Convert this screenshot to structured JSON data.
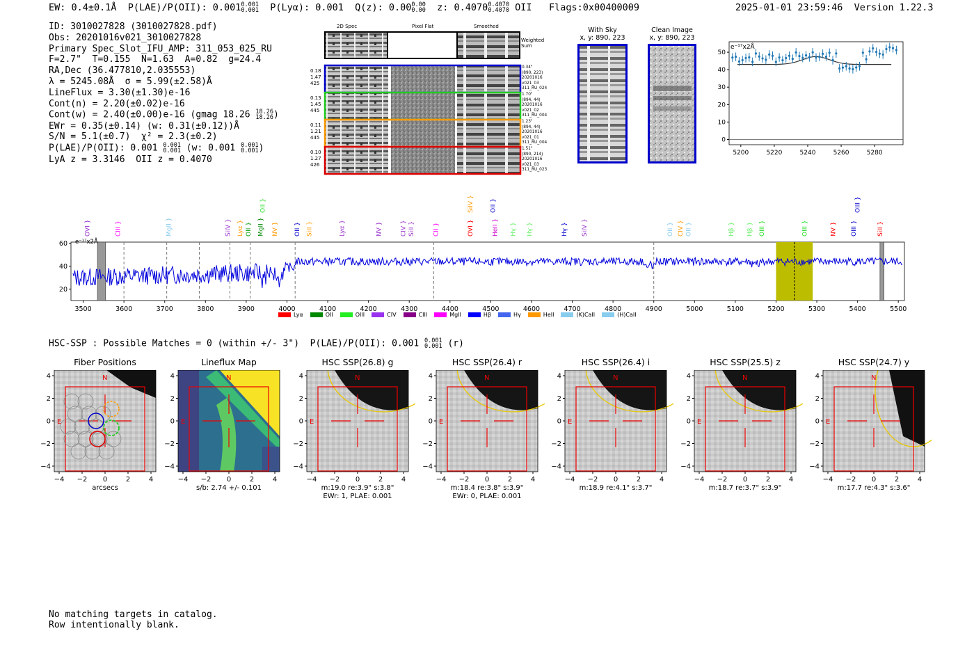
{
  "header": {
    "left": "EW: 0.4±0.1Å  P(LAE)/P(OII): 0.001",
    "plae_sup": "0.001",
    "plae_sub": "0.001",
    "plya": "P(Lyα): 0.001  Q(z): 0.00",
    "qz_sup": "0.00",
    "qz_sub": "0.00",
    "z": "z: 0.4070",
    "z_sup": "0.4070",
    "z_sub": "0.4070",
    "z_tail": "OII   Flags:0x00400009",
    "datetime": "2025-01-01 23:59:46  Version 1.22.3"
  },
  "info": {
    "id": "ID: 3010027828 (3010027828.pdf)",
    "obs": "Obs: 20201016v021_3010027828",
    "primary": "Primary Spec_Slot_IFU_AMP: 311_053_025_RU",
    "fwhm": "F=2.7\"  T=0.155  N=1.63  A=0.82  g=24.4",
    "radec": "RA,Dec (36.477810,2.035553)",
    "lambda": "λ = 5245.08Å  σ = 5.99(±2.58)Å",
    "lineflux": "LineFlux = 3.30(±1.30)e-16",
    "contn": "Cont(n) = 2.20(±0.02)e-16",
    "contw": "Cont(w) = 2.40(±0.00)e-16 (gmag 18.26",
    "contw_sup": "18.26",
    "contw_sub": "18.26",
    "ewr": "EWr = 0.35(±0.14) (w: 0.31(±0.12))Å",
    "sn": "S/N = 5.1(±0.7)  χ² = 2.3(±0.2)",
    "plae": "P(LAE)/P(OII): 0.001",
    "plae_sup": "0.001",
    "plae_sub": "0.001",
    "plae_w": "(w: 0.001",
    "plae_w_sup": "0.001",
    "plae_w_sub": "0.001",
    "lya": "LyA z = 3.3146  OII z = 0.4070"
  },
  "cutouts": {
    "headers": [
      "2D Spec",
      "Pixel Flat",
      "Smoothed"
    ],
    "weighted_label": "Weighted Sum",
    "rows": [
      {
        "left": [
          "0.18",
          "1.47",
          "425"
        ],
        "right": [
          "0.34\"",
          "(890, 223)",
          "20201016",
          "v021_03",
          "311_RU_024"
        ],
        "color": "#0000cc"
      },
      {
        "left": [
          "0.13",
          "1.45",
          "445"
        ],
        "right": [
          "1.70\"",
          "(894, 44)",
          "20201016",
          "v021_02",
          "311_RU_004"
        ],
        "color": "#22cc22"
      },
      {
        "left": [
          "0.11",
          "1.21",
          "445"
        ],
        "right": [
          "1.23\"",
          "(894, 44)",
          "20201016",
          "v021_01",
          "311_RU_004"
        ],
        "color": "#ff9900"
      },
      {
        "left": [
          "0.10",
          "1.27",
          "426"
        ],
        "right": [
          "1.51\"",
          "(890, 214)",
          "20201016",
          "v021_03",
          "311_RU_023"
        ],
        "color": "#dd0000"
      }
    ]
  },
  "sky": {
    "with_sky": "With Sky",
    "with_sky_xy": "x, y: 890, 223",
    "clean": "Clean Image",
    "clean_xy": "x, y: 890, 223"
  },
  "zoom_chart": {
    "ylabel": "e⁻¹⁷x2Å",
    "xticks": [
      5200,
      5220,
      5240,
      5260,
      5280
    ],
    "yticks": [
      0,
      10,
      20,
      30,
      40,
      50
    ],
    "xlim": [
      5193,
      5297
    ],
    "ylim": [
      -3,
      56
    ]
  },
  "chart_data": {
    "type": "line",
    "ylabel": "e⁻¹⁷x2Å",
    "xlim": [
      3470,
      5515
    ],
    "ylim": [
      10,
      61
    ],
    "xticks": [
      3500,
      3600,
      3700,
      3800,
      3900,
      4000,
      4100,
      4200,
      4300,
      4400,
      4500,
      4600,
      4700,
      4800,
      4900,
      5000,
      5100,
      5200,
      5300,
      5400,
      5500
    ],
    "yticks": [
      20,
      40,
      60
    ],
    "highlight_range": [
      5200,
      5290
    ],
    "highlight_center": 5245,
    "dashed_lines": [
      3600,
      3705,
      3785,
      3860,
      3910,
      4020,
      4360,
      4900
    ],
    "line_labels": [
      {
        "text": "OVI",
        "x": 3510,
        "color": "#9933cc",
        "row": 0
      },
      {
        "text": "CIII",
        "x": 3585,
        "color": "#ff00ff",
        "row": 0
      },
      {
        "text": "MgII",
        "x": 3710,
        "color": "#88ccee",
        "row": 0
      },
      {
        "text": "SiIV",
        "x": 3855,
        "color": "#9933cc",
        "row": 0
      },
      {
        "text": "Lyα",
        "x": 3885,
        "color": "#ff9900",
        "row": 0
      },
      {
        "text": "OII",
        "x": 3905,
        "color": "#009900",
        "row": 0
      },
      {
        "text": "MgII",
        "x": 3935,
        "color": "#008800",
        "row": 0
      },
      {
        "text": "OII",
        "x": 3940,
        "color": "#22dd22",
        "row": 1
      },
      {
        "text": "NV",
        "x": 3970,
        "color": "#ff9900",
        "row": 0
      },
      {
        "text": "OII",
        "x": 4025,
        "color": "#0000cc",
        "row": 0
      },
      {
        "text": "SiII",
        "x": 4055,
        "color": "#ff9900",
        "row": 0
      },
      {
        "text": "Lyα",
        "x": 4135,
        "color": "#9933cc",
        "row": 0
      },
      {
        "text": "NV",
        "x": 4225,
        "color": "#9933cc",
        "row": 0
      },
      {
        "text": "CIV",
        "x": 4285,
        "color": "#9933cc",
        "row": 0
      },
      {
        "text": "SiII",
        "x": 4305,
        "color": "#9933cc",
        "row": 0
      },
      {
        "text": "CII",
        "x": 4365,
        "color": "#ff00ff",
        "row": 0
      },
      {
        "text": "OVI",
        "x": 4450,
        "color": "#ff0000",
        "row": 0
      },
      {
        "text": "SiIV",
        "x": 4450,
        "color": "#ff9900",
        "row": 1
      },
      {
        "text": "HeII",
        "x": 4510,
        "color": "#cc00cc",
        "row": 0
      },
      {
        "text": "OII",
        "x": 4505,
        "color": "#0000cc",
        "row": 1
      },
      {
        "text": "Hγ",
        "x": 4555,
        "color": "#66ee66",
        "row": 0
      },
      {
        "text": "Hγ",
        "x": 4595,
        "color": "#66ee66",
        "row": 0
      },
      {
        "text": "Hγ",
        "x": 4680,
        "color": "#0000cc",
        "row": 0
      },
      {
        "text": "SiIV",
        "x": 4730,
        "color": "#9933cc",
        "row": 0
      },
      {
        "text": "OII",
        "x": 4940,
        "color": "#88ccee",
        "row": 0
      },
      {
        "text": "CIV",
        "x": 4965,
        "color": "#ff9900",
        "row": 0
      },
      {
        "text": "OII",
        "x": 4985,
        "color": "#88ccee",
        "row": 0
      },
      {
        "text": "Hβ",
        "x": 5090,
        "color": "#66ee66",
        "row": 0
      },
      {
        "text": "Hβ",
        "x": 5135,
        "color": "#66ee66",
        "row": 0
      },
      {
        "text": "OIII",
        "x": 5165,
        "color": "#22dd22",
        "row": 0
      },
      {
        "text": "OIII",
        "x": 5270,
        "color": "#22dd22",
        "row": 0
      },
      {
        "text": "NV",
        "x": 5340,
        "color": "#ff0000",
        "row": 0
      },
      {
        "text": "OIII",
        "x": 5390,
        "color": "#0000cc",
        "row": 0
      },
      {
        "text": "OIII",
        "x": 5400,
        "color": "#0000cc",
        "row": 1
      },
      {
        "text": "SiII",
        "x": 5455,
        "color": "#ff0000",
        "row": 0
      }
    ],
    "legend": [
      {
        "label": "Lyα",
        "color": "#ff0000"
      },
      {
        "label": "OII",
        "color": "#008800"
      },
      {
        "label": "OIII",
        "color": "#22ee22"
      },
      {
        "label": "CIV",
        "color": "#9933ee"
      },
      {
        "label": "CIII",
        "color": "#880088"
      },
      {
        "label": "MgII",
        "color": "#ff00ff"
      },
      {
        "label": "Hβ",
        "color": "#0000ff"
      },
      {
        "label": "Hγ",
        "color": "#4466ee"
      },
      {
        "label": "HeII",
        "color": "#ff9900"
      },
      {
        "label": "(K)CaII",
        "color": "#88ccee"
      },
      {
        "label": "(H)CaII",
        "color": "#88ccee"
      }
    ]
  },
  "hsc": {
    "line": "HSC-SSP : Possible Matches = 0 (within +/- 3\")  P(LAE)/P(OII): 0.001",
    "sup": "0.001",
    "sub": "0.001",
    "tail": "(r)"
  },
  "panels": [
    {
      "title": "Fiber Positions",
      "cap1": "arcsecs",
      "cap2": ""
    },
    {
      "title": "Lineflux Map",
      "cap1": "s/b: 2.74 +/- 0.101",
      "cap2": ""
    },
    {
      "title": "HSC SSP(26.8) g",
      "cap1": "m:19.0  re:3.9\"  s:3.8\"",
      "cap2": "EWr: 1, PLAE: 0.001"
    },
    {
      "title": "HSC SSP(26.4) r",
      "cap1": "m:18.4  re:3.8\"  s:3.9\"",
      "cap2": "EWr: 0, PLAE: 0.001"
    },
    {
      "title": "HSC SSP(26.4) i",
      "cap1": "m:18.9  re:4.1\"  s:3.7\"",
      "cap2": ""
    },
    {
      "title": "HSC SSP(25.5) z",
      "cap1": "m:18.7  re:3.7\"  s:3.9\"",
      "cap2": ""
    },
    {
      "title": "HSC SSP(24.7) y",
      "cap1": "m:17.7  re:4.3\"  s:3.6\"",
      "cap2": ""
    }
  ],
  "panel_axes": {
    "xticks": [
      "−4",
      "−2",
      "0",
      "2",
      "4"
    ],
    "yticks": [
      "4",
      "2",
      "0",
      "−2",
      "−4"
    ],
    "north": "N",
    "east": "E"
  },
  "footer": {
    "line1": "No matching targets in catalog.",
    "line2": "Row intentionally blank."
  }
}
